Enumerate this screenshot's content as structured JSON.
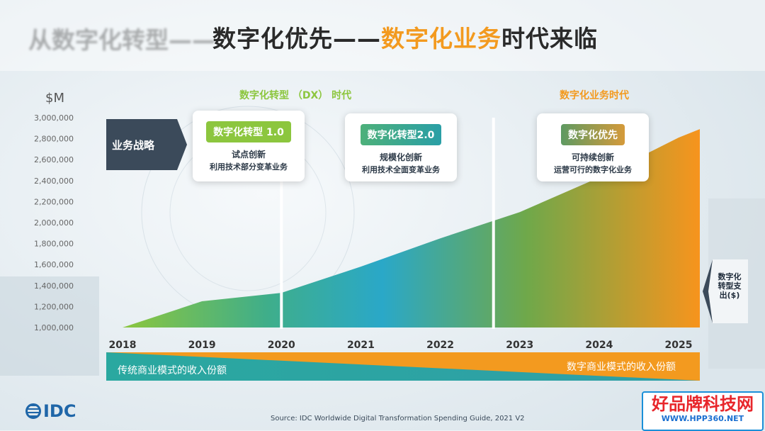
{
  "title": {
    "ghost": "从数字化转型——",
    "part1": "数字化优先——",
    "part2": "数字化业务",
    "part3": "时代来临"
  },
  "eras": {
    "dx": "数字化转型 （DX） 时代",
    "business": "数字化业务时代"
  },
  "strategy_label": "业务战略",
  "cards": [
    {
      "pill": "数字化转型 1.0",
      "line1": "试点创新",
      "line2": "利用技术部分变革业务",
      "color": "#8cc63e"
    },
    {
      "pill": "数字化转型2.0",
      "line1": "规模化创新",
      "line2": "利用技术全面变革业务",
      "color": "#2fa38d"
    },
    {
      "pill": "数字化优先",
      "line1": "可持续创新",
      "line2": "运营可行的数字化业务",
      "color": "#6a9a5f"
    }
  ],
  "spend_label": "数字化转型支出($)",
  "band": {
    "left_label": "传统商业模式的收入份额",
    "right_label": "数字商业模式的收入份额",
    "teal": "#2aa8a0",
    "orange": "#f39a1f"
  },
  "source": "Source: IDC Worldwide Digital Transformation Spending Guide, 2021 V2",
  "logo": "IDC",
  "watermark": {
    "line1": "好品牌科技网",
    "line2": "WWW.HPP360.NET"
  },
  "chart_data": {
    "type": "area",
    "ylabel": "$M",
    "ylim": [
      1000000,
      3000000
    ],
    "yticks": [
      1000000,
      1200000,
      1400000,
      1600000,
      1800000,
      2000000,
      2200000,
      2400000,
      2600000,
      2800000,
      3000000
    ],
    "ytick_labels": [
      "1,000,000",
      "1,200,000",
      "1,400,000",
      "1,600,000",
      "1,800,000",
      "2,000,000",
      "2,200,000",
      "2,400,000",
      "2,600,000",
      "2,800,000",
      "3,000,000"
    ],
    "categories": [
      "2018",
      "2019",
      "2020",
      "2021",
      "2022",
      "2023",
      "2024",
      "2025"
    ],
    "x": [
      2018,
      2019,
      2020,
      2021,
      2022,
      2023,
      2024,
      2025
    ],
    "values": [
      1000000,
      1250000,
      1330000,
      1580000,
      1850000,
      2100000,
      2430000,
      2810000
    ],
    "era_breaks": [
      2020,
      2022.67
    ],
    "grid": false
  }
}
